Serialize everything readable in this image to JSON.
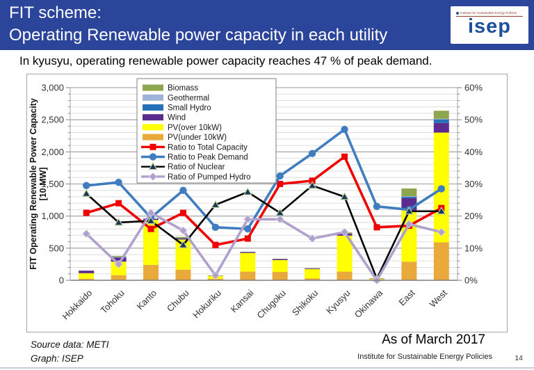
{
  "header": {
    "title_line1": "FIT scheme:",
    "title_line2": "Operating Renewable power capacity in each utility",
    "logo": {
      "small_text": "Institute for Sustainable Energy Policies",
      "brand": "isep"
    }
  },
  "subtitle": "In kyusyu, operating renewable power capacity reaches 47 % of peak demand.",
  "footer": {
    "source_line1": "Source data: METI",
    "source_line2": "Graph: ISEP",
    "as_of": "As of March 2017",
    "institute": "Institute for Sustainable Energy Policies",
    "page_number": "14"
  },
  "colors": {
    "header_background": "#2b459b",
    "logo_blue": "#1e4f9e",
    "grid_minor": "#dddddd",
    "grid_major": "#9a9a9a",
    "axis_line": "#808080"
  },
  "chart_data": {
    "type": "bar",
    "subtype": "stacked bars with overlaid ratio lines",
    "categories": [
      "Hokkaido",
      "Tohoku",
      "Kanto",
      "Chubu",
      "Hokuriku",
      "Kansai",
      "Chugoku",
      "Shikoku",
      "Kyusyu",
      "Okinawa",
      "East",
      "West"
    ],
    "left_axis": {
      "label_line1": "FIT Operating  Renewable Power Capacity",
      "label_line2": "[10 MW]",
      "min": 0,
      "max": 3000,
      "major": 500,
      "minor": 100,
      "ticks": [
        "0",
        "500",
        "1,000",
        "1,500",
        "2,000",
        "2,500",
        "3,000"
      ]
    },
    "right_axis": {
      "min": 0,
      "max": 60,
      "major": 10,
      "minor": 2,
      "unit": "%",
      "ticks": [
        "0%",
        "10%",
        "20%",
        "30%",
        "40%",
        "50%",
        "60%"
      ]
    },
    "grid": "minor and major horizontal gridlines on",
    "legend_position": "top-center-left inside plot",
    "bar_series": [
      {
        "name": "PV(under 10kW)",
        "color": "#E9A93B",
        "values": [
          25,
          80,
          240,
          165,
          25,
          135,
          130,
          30,
          135,
          15,
          290,
          590
        ]
      },
      {
        "name": "PV(over 10kW)",
        "color": "#FFFF00",
        "values": [
          85,
          210,
          700,
          470,
          45,
          290,
          185,
          145,
          560,
          10,
          800,
          1710
        ]
      },
      {
        "name": "Wind",
        "color": "#5B2B8F",
        "values": [
          40,
          65,
          20,
          15,
          5,
          15,
          15,
          10,
          30,
          5,
          190,
          150
        ]
      },
      {
        "name": "Small Hydro",
        "color": "#2571B8",
        "values": [
          0,
          5,
          0,
          5,
          0,
          0,
          0,
          0,
          0,
          0,
          20,
          55
        ]
      },
      {
        "name": "Geothermal",
        "color": "#9DB4D8",
        "values": [
          0,
          5,
          0,
          0,
          0,
          0,
          0,
          0,
          0,
          0,
          10,
          10
        ]
      },
      {
        "name": "Biomass",
        "color": "#8EA64E",
        "values": [
          0,
          15,
          0,
          20,
          0,
          5,
          5,
          5,
          20,
          0,
          120,
          125
        ]
      }
    ],
    "line_series": [
      {
        "name": "Ratio to Total Capacity",
        "color": "#F00000",
        "marker": "square",
        "values": [
          21,
          24,
          16,
          21,
          11,
          13,
          30,
          31,
          38.5,
          16.5,
          17,
          22.5
        ]
      },
      {
        "name": "Ratio to Peak Demand",
        "color": "#3F7DC0",
        "marker": "circle",
        "values": [
          29.5,
          30.5,
          19.5,
          28,
          16.5,
          16,
          32.5,
          39.5,
          47,
          23,
          22,
          28.5
        ]
      },
      {
        "name": "Ratio of Nuclear",
        "color": "#000000",
        "marker": "triangle",
        "values": [
          27,
          18,
          18.5,
          11,
          23.5,
          27.5,
          21,
          29.5,
          26,
          0.5,
          21.5,
          21.5
        ]
      },
      {
        "name": "Ratio of Pumped Hydro",
        "color": "#AFA0CC",
        "marker": "diamond",
        "values": [
          14.5,
          5,
          21,
          15.5,
          1.5,
          19,
          19,
          13,
          15,
          0,
          17.5,
          15
        ]
      }
    ],
    "legend_order": [
      "Biomass",
      "Geothermal",
      "Small Hydro",
      "Wind",
      "PV(over 10kW)",
      "PV(under 10kW)",
      "Ratio to Total Capacity",
      "Ratio to Peak Demand",
      "Ratio of Nuclear",
      "Ratio of Pumped Hydro"
    ]
  }
}
